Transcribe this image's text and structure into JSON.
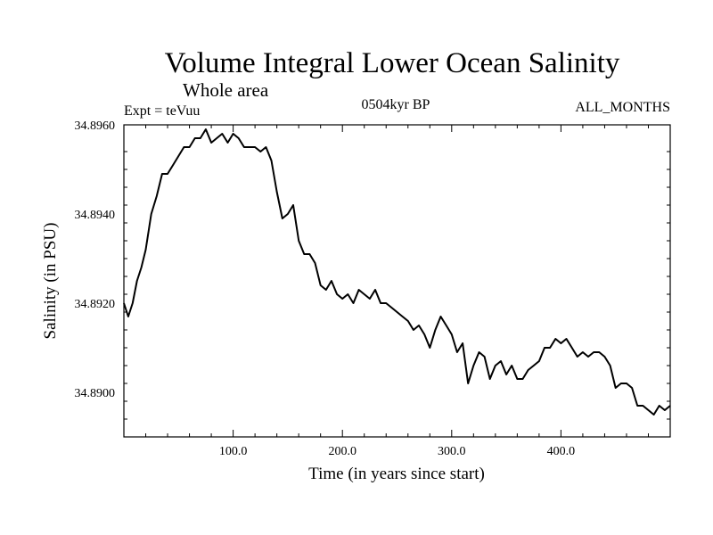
{
  "chart_data": {
    "type": "line",
    "title": "Volume Integral Lower Ocean Salinity",
    "subtitle": "Whole area",
    "experiment_label": "Expt = teVuu",
    "period_label": "0504kyr BP",
    "months_label": "ALL_MONTHS",
    "xlabel": "Time (in years since start)",
    "ylabel": "Salinity (in PSU)",
    "xlim": [
      0,
      500
    ],
    "ylim": [
      34.889,
      34.896
    ],
    "xticks": [
      100,
      200,
      300,
      400
    ],
    "xtick_labels": [
      "100.0",
      "200.0",
      "300.0",
      "400.0"
    ],
    "yticks": [
      34.89,
      34.892,
      34.894,
      34.896
    ],
    "ytick_labels": [
      "34.8900",
      "34.8920",
      "34.8940",
      "34.8960"
    ],
    "grid": false,
    "series": [
      {
        "name": "Salinity",
        "color": "#000000",
        "x": [
          0,
          4,
          8,
          12,
          16,
          20,
          25,
          30,
          35,
          40,
          45,
          50,
          55,
          60,
          65,
          70,
          75,
          80,
          85,
          90,
          95,
          100,
          105,
          110,
          115,
          120,
          125,
          130,
          135,
          140,
          145,
          150,
          155,
          160,
          165,
          170,
          175,
          180,
          185,
          190,
          195,
          200,
          205,
          210,
          215,
          220,
          225,
          230,
          235,
          240,
          245,
          250,
          255,
          260,
          265,
          270,
          275,
          280,
          285,
          290,
          295,
          300,
          305,
          310,
          315,
          320,
          325,
          330,
          335,
          340,
          345,
          350,
          355,
          360,
          365,
          370,
          375,
          380,
          385,
          390,
          395,
          400,
          405,
          410,
          415,
          420,
          425,
          430,
          435,
          440,
          445,
          450,
          455,
          460,
          465,
          470,
          475,
          480,
          485,
          490,
          495,
          500
        ],
        "values": [
          34.892,
          34.8917,
          34.892,
          34.8925,
          34.8928,
          34.8932,
          34.894,
          34.8944,
          34.8949,
          34.8949,
          34.8951,
          34.8953,
          34.8955,
          34.8955,
          34.8957,
          34.8957,
          34.8959,
          34.8956,
          34.8957,
          34.8958,
          34.8956,
          34.8958,
          34.8957,
          34.8955,
          34.8955,
          34.8955,
          34.8954,
          34.8955,
          34.8952,
          34.8945,
          34.8939,
          34.894,
          34.8942,
          34.8934,
          34.8931,
          34.8931,
          34.8929,
          34.8924,
          34.8923,
          34.8925,
          34.8922,
          34.8921,
          34.8922,
          34.892,
          34.8923,
          34.8922,
          34.8921,
          34.8923,
          34.892,
          34.892,
          34.8919,
          34.8918,
          34.8917,
          34.8916,
          34.8914,
          34.8915,
          34.8913,
          34.891,
          34.8914,
          34.8917,
          34.8915,
          34.8913,
          34.8909,
          34.8911,
          34.8902,
          34.8906,
          34.8909,
          34.8908,
          34.8903,
          34.8906,
          34.8907,
          34.8904,
          34.8906,
          34.8903,
          34.8903,
          34.8905,
          34.8906,
          34.8907,
          34.891,
          34.891,
          34.8912,
          34.8911,
          34.8912,
          34.891,
          34.8908,
          34.8909,
          34.8908,
          34.8909,
          34.8909,
          34.8908,
          34.8906,
          34.8901,
          34.8902,
          34.8902,
          34.8901,
          34.8897,
          34.8897,
          34.8896,
          34.8895,
          34.8897,
          34.8896,
          34.8897
        ]
      }
    ]
  }
}
